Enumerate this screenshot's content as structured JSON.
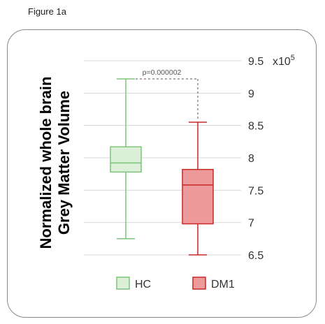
{
  "figure_label": "Figure 1a",
  "colors": {
    "hc_stroke": "#7dc47a",
    "hc_fill": "#dcefd8",
    "dm1_stroke": "#c62828",
    "dm1_fill": "#ef9a9a",
    "grid": "#d9d9d9",
    "annotation": "#555555"
  },
  "chart_data": {
    "type": "box",
    "ylabel_line1": "Normalized whole brain",
    "ylabel_line2": "Grey Matter Volume",
    "y_axis_position": "right",
    "ylim": [
      6.5,
      9.5
    ],
    "yticks": [
      6.5,
      7,
      7.5,
      8,
      8.5,
      9,
      9.5
    ],
    "ytick_labels": [
      "6.5",
      "7",
      "7.5",
      "8",
      "8.5",
      "9",
      "9.5"
    ],
    "y_multiplier_base": "x10",
    "y_multiplier_exp": "5",
    "grid": true,
    "series": [
      {
        "name": "HC",
        "whisker_low": 6.75,
        "q1": 7.78,
        "median": 7.92,
        "q3": 8.17,
        "whisker_high": 9.22
      },
      {
        "name": "DM1",
        "whisker_low": 6.5,
        "q1": 6.98,
        "median": 7.58,
        "q3": 7.82,
        "whisker_high": 8.55
      }
    ],
    "annotation": {
      "text": "p=0.000002"
    },
    "legend": {
      "position": "bottom",
      "entries": [
        "HC",
        "DM1"
      ]
    }
  }
}
